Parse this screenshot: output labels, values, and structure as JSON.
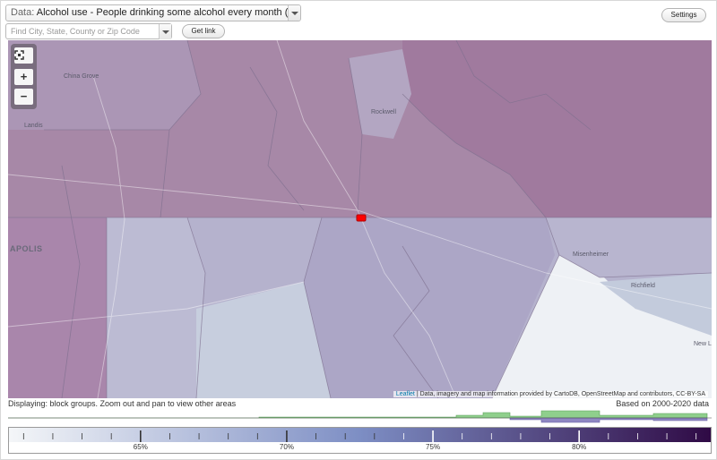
{
  "controls": {
    "data_prefix": "Data:",
    "data_value": "Alcohol use - People drinking some alcohol every month (%)",
    "search_placeholder": "Find City, State, County or Zip Code",
    "get_link_label": "Get link",
    "settings_label": "Settings"
  },
  "map": {
    "zoom_in_label": "+",
    "zoom_out_label": "−",
    "fullscreen_icon": "fullscreen-icon",
    "place_labels": {
      "china_grove": "China Grove",
      "landis": "Landis",
      "rockwell": "Rockwell",
      "apolis": "APOLIS",
      "misenheimer": "Misenheimer",
      "richfield": "Richfield",
      "new_l": "New L"
    },
    "attribution_leaflet": "Leaflet",
    "attribution_text": " | Data, imagery and map information provided by CartoDB, OpenStreetMap and contributors, CC-BY-SA"
  },
  "status": {
    "displaying": "Displaying: block groups. Zoom out and pan to view other areas",
    "based_on": "Based on 2000-2020 data"
  },
  "legend": {
    "tick_labels": [
      "65%",
      "70%",
      "75%",
      "80%"
    ],
    "tick_values": [
      65,
      70,
      75,
      80
    ],
    "range": [
      60.5,
      84.5
    ],
    "color_low": "#f4f6f8",
    "color_mid": "#7d8ec4",
    "color_high": "#2f0a45"
  },
  "colors": {
    "map_upper_region": "#a880a2",
    "map_lower_region": "#b6b2cd",
    "map_light_area": "#e2e8f0",
    "histogram_green": "#8fcf8c",
    "histogram_purple": "#8e86c2",
    "highlight": "#ff0000"
  }
}
